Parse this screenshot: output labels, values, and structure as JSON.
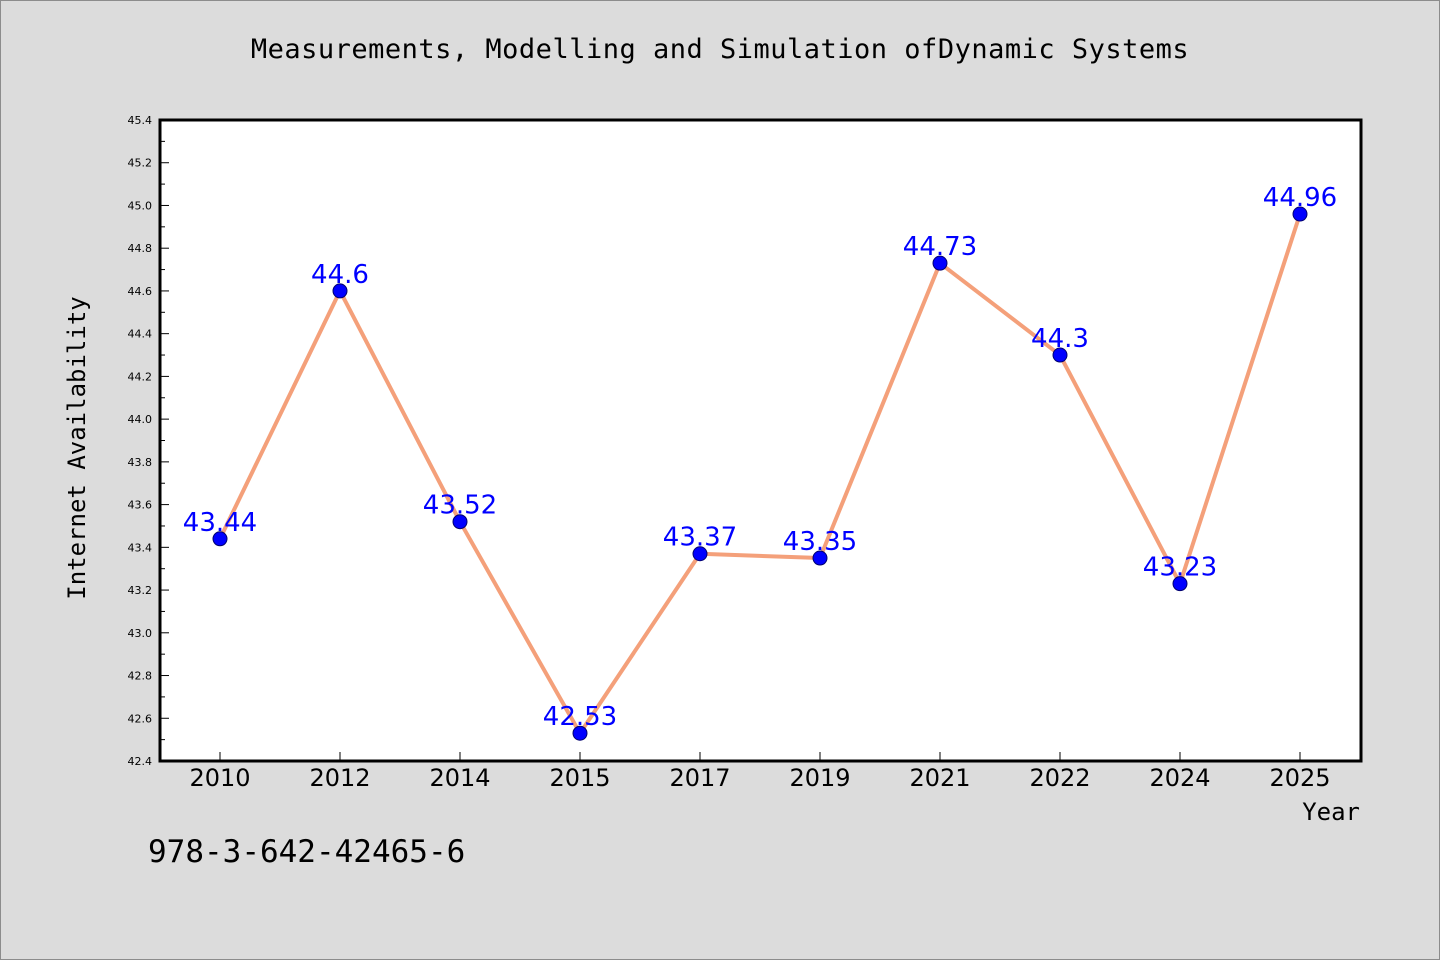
{
  "chart_data": {
    "type": "line",
    "title": "Measurements, Modelling and Simulation ofDynamic Systems",
    "xlabel": "Year",
    "ylabel": "Internet Availability",
    "categories": [
      "2010",
      "2012",
      "2014",
      "2015",
      "2017",
      "2019",
      "2021",
      "2022",
      "2024",
      "2025"
    ],
    "series": [
      {
        "values": [
          43.44,
          44.6,
          43.52,
          42.53,
          43.37,
          43.35,
          44.73,
          44.3,
          43.23,
          44.96
        ],
        "labels": [
          "43.44",
          "44.6",
          "43.52",
          "42.53",
          "43.37",
          "43.35",
          "44.73",
          "44.3",
          "43.23",
          "44.96"
        ]
      }
    ],
    "ylim": [
      42.4,
      45.4
    ],
    "yticks": [
      "42.4",
      "42.6",
      "42.8",
      "43.0",
      "43.2",
      "43.4",
      "43.6",
      "43.8",
      "44.0",
      "44.2",
      "44.4",
      "44.6",
      "44.8",
      "45.0",
      "45.2",
      "45.4"
    ],
    "grid": false,
    "line_color": "#f4a07a",
    "marker_color": "#0000ff",
    "label_color": "#0000ff"
  },
  "footer": {
    "isbn": "978-3-642-42465-6"
  }
}
